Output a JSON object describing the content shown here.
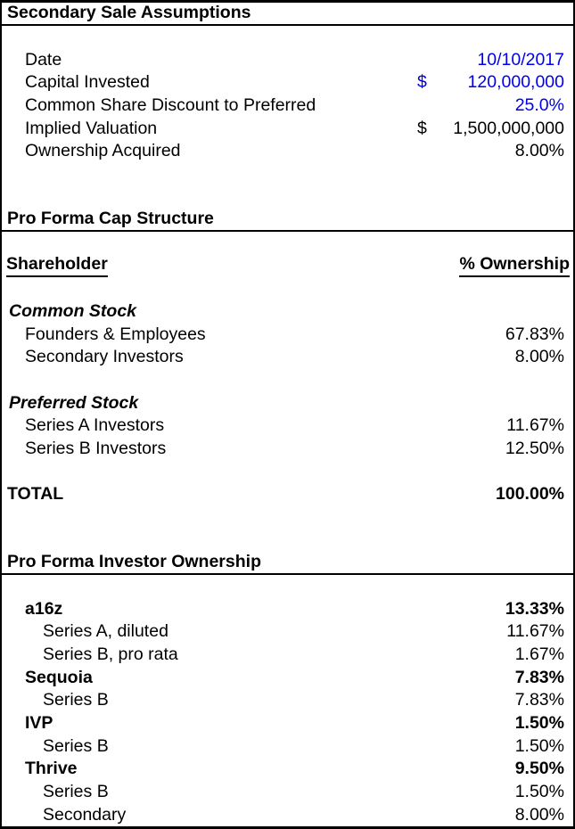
{
  "page": {
    "title": "Secondary Sale Assumptions"
  },
  "colors": {
    "input_text_blue": "#0000EE",
    "body_text": "#000000",
    "border": "#000000",
    "background": "#FFFFFF"
  },
  "assumptions": {
    "header": "Secondary Sale Assumptions",
    "rows": [
      {
        "label": "Date",
        "currency": "",
        "value": "10/10/2017",
        "editable": true
      },
      {
        "label": "Capital Invested",
        "currency": "$",
        "value": "120,000,000",
        "editable": true
      },
      {
        "label": "Common Share Discount to Preferred",
        "currency": "",
        "value": "25.0%",
        "editable": true
      },
      {
        "label": "Implied Valuation",
        "currency": "$",
        "value": "1,500,000,000",
        "editable": false
      },
      {
        "label": "Ownership Acquired",
        "currency": "",
        "value": "8.00%",
        "editable": false
      }
    ]
  },
  "cap_structure": {
    "header": "Pro Forma Cap Structure",
    "columns": {
      "shareholder": "Shareholder",
      "ownership": "% Ownership"
    },
    "common_stock": {
      "group_label": "Common Stock",
      "rows": [
        {
          "label": "Founders & Employees",
          "value": "67.83%"
        },
        {
          "label": "Secondary Investors",
          "value": "8.00%"
        }
      ]
    },
    "preferred_stock": {
      "group_label": "Preferred Stock",
      "rows": [
        {
          "label": "Series A Investors",
          "value": "11.67%"
        },
        {
          "label": "Series B Investors",
          "value": "12.50%"
        }
      ]
    },
    "total": {
      "label": "TOTAL",
      "value": "100.00%"
    }
  },
  "investor_ownership": {
    "header": "Pro Forma Investor Ownership",
    "investors": [
      {
        "name": "a16z",
        "total": "13.33%",
        "rows": [
          {
            "label": "Series A, diluted",
            "value": "11.67%"
          },
          {
            "label": "Series B, pro rata",
            "value": "1.67%"
          }
        ]
      },
      {
        "name": "Sequoia",
        "total": "7.83%",
        "rows": [
          {
            "label": "Series B",
            "value": "7.83%"
          }
        ]
      },
      {
        "name": "IVP",
        "total": "1.50%",
        "rows": [
          {
            "label": "Series B",
            "value": "1.50%"
          }
        ]
      },
      {
        "name": "Thrive",
        "total": "9.50%",
        "rows": [
          {
            "label": "Series B",
            "value": "1.50%"
          },
          {
            "label": "Secondary",
            "value": "8.00%"
          }
        ]
      }
    ]
  }
}
